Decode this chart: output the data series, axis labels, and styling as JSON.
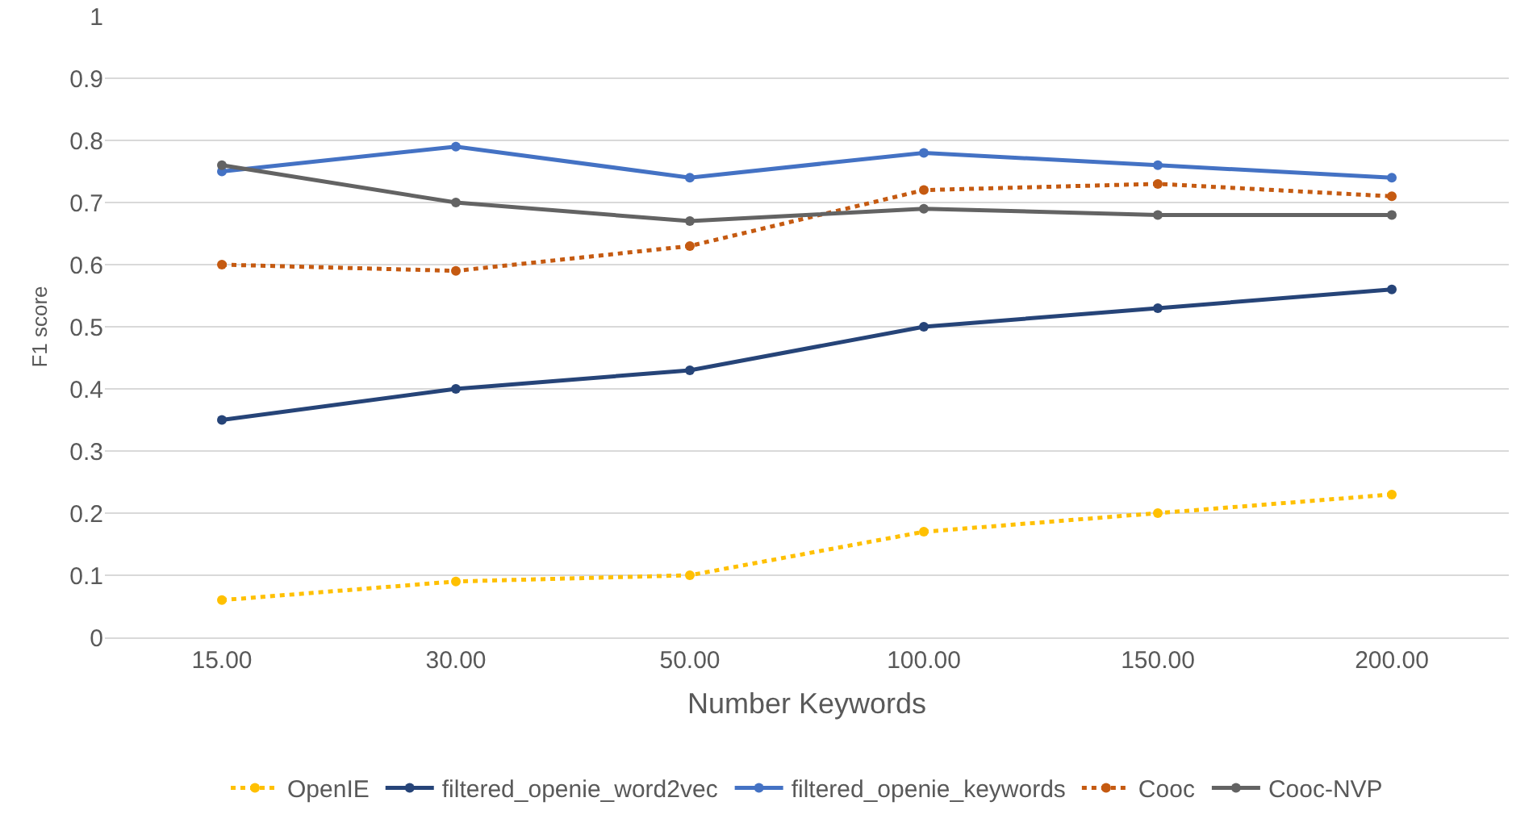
{
  "chart_data": {
    "type": "line",
    "xlabel": "Number Keywords",
    "ylabel": "F1 score",
    "categories": [
      "15.00",
      "30.00",
      "50.00",
      "100.00",
      "150.00",
      "200.00"
    ],
    "ylim": [
      0,
      1
    ],
    "yticks": [
      0,
      0.1,
      0.2,
      0.3,
      0.4,
      0.5,
      0.6,
      0.7,
      0.8,
      0.9,
      1
    ],
    "grid": "y",
    "legend": "bottom",
    "marker": "circle",
    "line_style": "solid",
    "series": [
      {
        "name": "OpenIE",
        "color": "#ffc000",
        "line_style": "dotted",
        "values": [
          0.06,
          0.09,
          0.1,
          0.17,
          0.2,
          0.23
        ]
      },
      {
        "name": "filtered_openie_word2vec",
        "color": "#264478",
        "values": [
          0.35,
          0.4,
          0.43,
          0.5,
          0.53,
          0.56
        ]
      },
      {
        "name": "filtered_openie_keywords",
        "color": "#4472c4",
        "values": [
          0.75,
          0.79,
          0.74,
          0.78,
          0.76,
          0.74
        ]
      },
      {
        "name": "Cooc",
        "color": "#c55a11",
        "line_style": "dotted",
        "values": [
          0.6,
          0.59,
          0.63,
          0.72,
          0.73,
          0.71
        ]
      },
      {
        "name": "Cooc-NVP",
        "color": "#636363",
        "values": [
          0.76,
          0.7,
          0.67,
          0.69,
          0.68,
          0.68
        ]
      }
    ]
  }
}
